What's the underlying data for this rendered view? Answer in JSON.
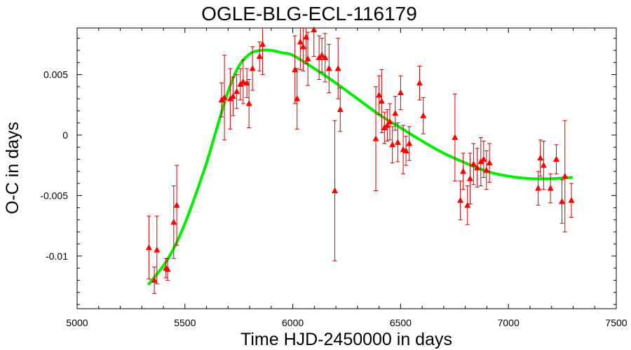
{
  "chart_data": {
    "type": "scatter",
    "title": "OGLE-BLG-ECL-116179",
    "xlabel": "Time HJD-2450000 in days",
    "ylabel": "O-C in days",
    "xlim": [
      5000,
      7500
    ],
    "ylim": [
      -0.01435,
      0.00885
    ],
    "xticks": [
      5000,
      5500,
      6000,
      6500,
      7000,
      7500
    ],
    "xtick_labels": [
      "5000",
      "5500",
      "6000",
      "6500",
      "7000",
      "7500"
    ],
    "yticks": [
      -0.01,
      -0.005,
      0,
      0.005
    ],
    "ytick_labels": [
      "-0.01",
      "-0.005",
      "0",
      "0.005"
    ],
    "grid": false,
    "colors": {
      "points": "#ff0000",
      "errorbars": "#cc0000",
      "fit": "#00ee00",
      "axes": "#000000"
    },
    "series": [
      {
        "kind": "points-with-errorbars",
        "points": [
          {
            "x": 5333,
            "y": -0.0093,
            "err": 0.0026
          },
          {
            "x": 5358,
            "y": -0.012,
            "err": 0.0011
          },
          {
            "x": 5370,
            "y": -0.0095,
            "err": 0.0028
          },
          {
            "x": 5412,
            "y": -0.011,
            "err": 0.0008
          },
          {
            "x": 5420,
            "y": -0.0111,
            "err": 0.0009
          },
          {
            "x": 5448,
            "y": -0.0072,
            "err": 0.003
          },
          {
            "x": 5462,
            "y": -0.0058,
            "err": 0.0033
          },
          {
            "x": 5670,
            "y": 0.0029,
            "err": 0.0014
          },
          {
            "x": 5683,
            "y": 0.0031,
            "err": 0.0035
          },
          {
            "x": 5710,
            "y": 0.003,
            "err": 0.0025
          },
          {
            "x": 5723,
            "y": 0.0032,
            "err": 0.0016
          },
          {
            "x": 5740,
            "y": 0.0036,
            "err": 0.0014
          },
          {
            "x": 5757,
            "y": 0.0042,
            "err": 0.0013
          },
          {
            "x": 5770,
            "y": 0.0044,
            "err": 0.0018
          },
          {
            "x": 5787,
            "y": 0.0043,
            "err": 0.0012
          },
          {
            "x": 5797,
            "y": 0.0026,
            "err": 0.002
          },
          {
            "x": 5813,
            "y": 0.0055,
            "err": 0.0018
          },
          {
            "x": 5846,
            "y": 0.0065,
            "err": 0.0012
          },
          {
            "x": 5860,
            "y": 0.0075,
            "err": 0.0025
          },
          {
            "x": 6010,
            "y": 0.0054,
            "err": 0.0028
          },
          {
            "x": 6020,
            "y": 0.003,
            "err": 0.0025
          },
          {
            "x": 6035,
            "y": 0.0077,
            "err": 0.0023
          },
          {
            "x": 6048,
            "y": 0.0073,
            "err": 0.002
          },
          {
            "x": 6062,
            "y": 0.0081,
            "err": 0.0022
          },
          {
            "x": 6070,
            "y": 0.0063,
            "err": 0.0022
          },
          {
            "x": 6098,
            "y": 0.0087,
            "err": 0.0022
          },
          {
            "x": 6122,
            "y": 0.0064,
            "err": 0.0018
          },
          {
            "x": 6135,
            "y": 0.0066,
            "err": 0.0014
          },
          {
            "x": 6150,
            "y": 0.0064,
            "err": 0.002
          },
          {
            "x": 6168,
            "y": 0.0055,
            "err": 0.002
          },
          {
            "x": 6195,
            "y": -0.0046,
            "err": 0.0058
          },
          {
            "x": 6210,
            "y": 0.0055,
            "err": 0.0025
          },
          {
            "x": 6220,
            "y": 0.0021,
            "err": 0.0018
          },
          {
            "x": 6385,
            "y": -0.0003,
            "err": 0.0043
          },
          {
            "x": 6400,
            "y": 0.0033,
            "err": 0.0016
          },
          {
            "x": 6412,
            "y": 0.0028,
            "err": 0.0026
          },
          {
            "x": 6425,
            "y": 0.0006,
            "err": 0.0013
          },
          {
            "x": 6438,
            "y": 0.0008,
            "err": 0.0013
          },
          {
            "x": 6450,
            "y": 0.0011,
            "err": 0.0015
          },
          {
            "x": 6462,
            "y": -0.0008,
            "err": 0.0015
          },
          {
            "x": 6475,
            "y": 0.0018,
            "err": 0.0014
          },
          {
            "x": 6487,
            "y": -0.0006,
            "err": 0.0016
          },
          {
            "x": 6500,
            "y": 0.0035,
            "err": 0.0014
          },
          {
            "x": 6512,
            "y": -0.0012,
            "err": 0.002
          },
          {
            "x": 6525,
            "y": -0.0013,
            "err": 0.0012
          },
          {
            "x": 6540,
            "y": -0.0007,
            "err": 0.0014
          },
          {
            "x": 6588,
            "y": 0.0043,
            "err": 0.0014
          },
          {
            "x": 6605,
            "y": 0.0016,
            "err": 0.0015
          },
          {
            "x": 6752,
            "y": -0.0002,
            "err": 0.0036
          },
          {
            "x": 6777,
            "y": -0.0054,
            "err": 0.0016
          },
          {
            "x": 6790,
            "y": -0.003,
            "err": 0.0015
          },
          {
            "x": 6810,
            "y": -0.0058,
            "err": 0.0016
          },
          {
            "x": 6822,
            "y": -0.0036,
            "err": 0.0021
          },
          {
            "x": 6838,
            "y": -0.0024,
            "err": 0.0017
          },
          {
            "x": 6855,
            "y": -0.0027,
            "err": 0.0016
          },
          {
            "x": 6872,
            "y": -0.0022,
            "err": 0.002
          },
          {
            "x": 6885,
            "y": -0.002,
            "err": 0.0015
          },
          {
            "x": 6898,
            "y": -0.0029,
            "err": 0.0016
          },
          {
            "x": 6912,
            "y": -0.0023,
            "err": 0.0016
          },
          {
            "x": 7138,
            "y": -0.0044,
            "err": 0.0014
          },
          {
            "x": 7148,
            "y": -0.0019,
            "err": 0.0015
          },
          {
            "x": 7163,
            "y": -0.0025,
            "err": 0.002
          },
          {
            "x": 7195,
            "y": -0.0044,
            "err": 0.0012
          },
          {
            "x": 7222,
            "y": -0.002,
            "err": 0.0012
          },
          {
            "x": 7248,
            "y": -0.0055,
            "err": 0.0018
          },
          {
            "x": 7262,
            "y": -0.0034,
            "err": 0.0046
          },
          {
            "x": 7292,
            "y": -0.0054,
            "err": 0.0014
          }
        ]
      },
      {
        "kind": "fit-curve",
        "x": [
          5333,
          5400,
          5450,
          5500,
          5550,
          5600,
          5650,
          5700,
          5750,
          5800,
          5850,
          5900,
          5950,
          6000,
          6100,
          6200,
          6300,
          6400,
          6500,
          6600,
          6700,
          6800,
          6900,
          7000,
          7100,
          7200,
          7292
        ],
        "y": [
          -0.0123,
          -0.0108,
          -0.0093,
          -0.0073,
          -0.0049,
          -0.0023,
          0.0007,
          0.0036,
          0.0057,
          0.0067,
          0.007,
          0.007,
          0.0068,
          0.0066,
          0.0055,
          0.0043,
          0.003,
          0.0017,
          0.0006,
          -0.0005,
          -0.0015,
          -0.0023,
          -0.003,
          -0.0034,
          -0.0036,
          -0.0036,
          -0.0035
        ]
      }
    ]
  }
}
